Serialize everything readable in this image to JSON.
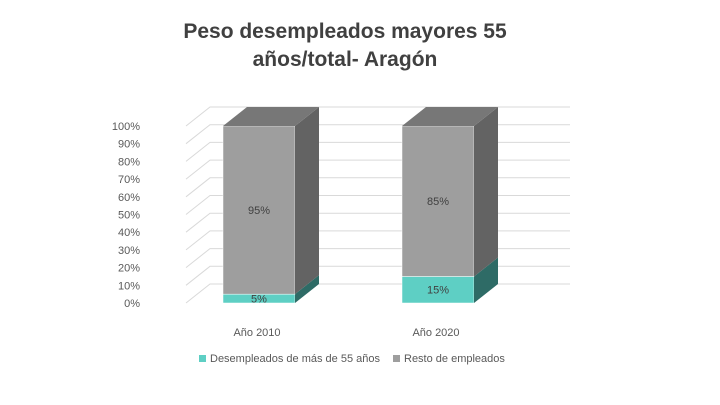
{
  "chart_data": {
    "type": "bar",
    "stacked": true,
    "percent": true,
    "three_d": true,
    "title_lines": [
      "Peso desempleados mayores 55",
      "años/total- Aragón"
    ],
    "categories": [
      "Año 2010",
      "Año 2020"
    ],
    "series": [
      {
        "name": "Desempleados de más de 55 años",
        "values": [
          5,
          15
        ],
        "labels": [
          "5%",
          "15%"
        ],
        "color": "#5ECFC4",
        "side_color": "#2E6B66"
      },
      {
        "name": "Resto de empleados",
        "values": [
          95,
          85
        ],
        "labels": [
          "95%",
          "85%"
        ],
        "color": "#9E9E9E",
        "side_color": "#636363",
        "top_color": "#777777"
      }
    ],
    "yticks": [
      "0%",
      "10%",
      "20%",
      "30%",
      "40%",
      "50%",
      "60%",
      "70%",
      "80%",
      "90%",
      "100%"
    ],
    "ylim": [
      0,
      100
    ],
    "grid": true,
    "legend_position": "bottom"
  }
}
